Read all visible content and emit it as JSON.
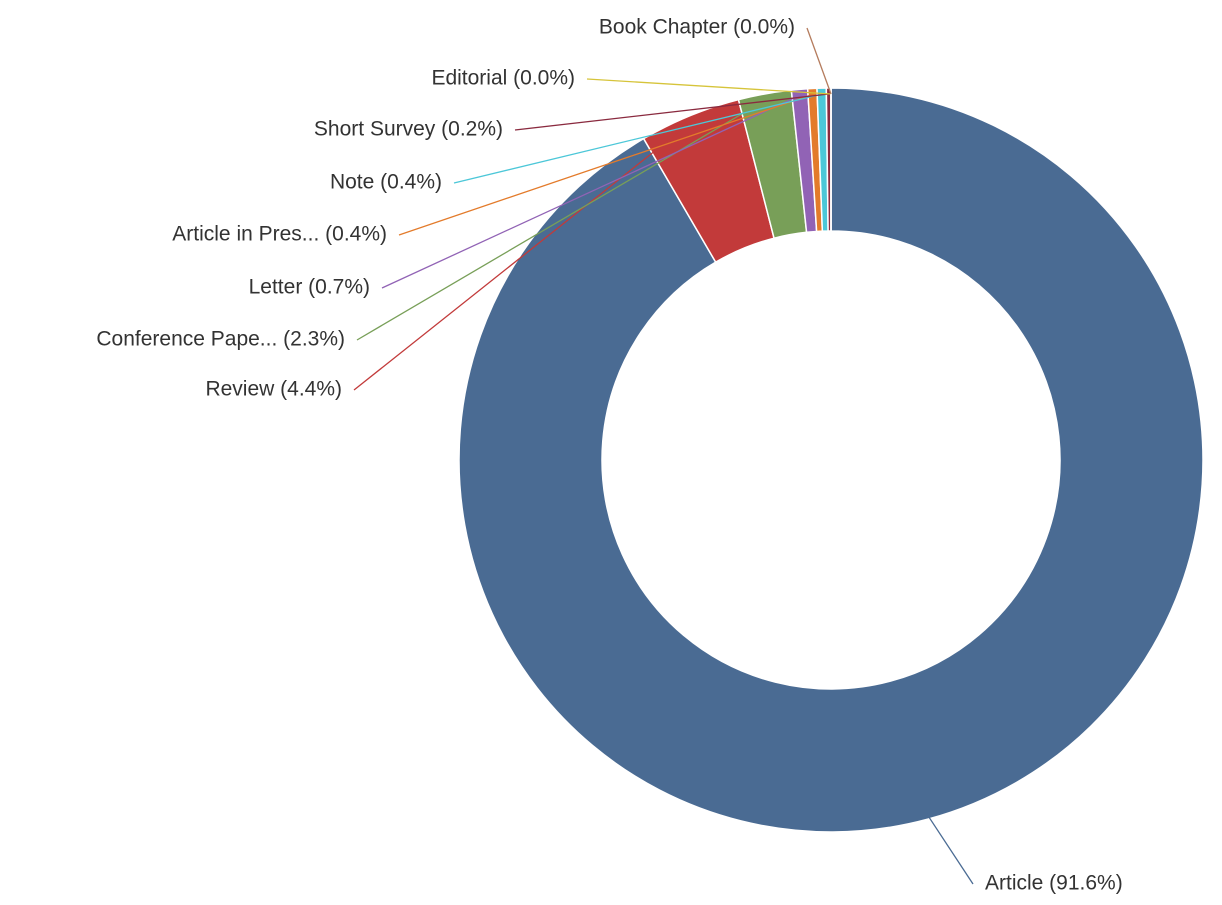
{
  "chart_data": {
    "type": "donut",
    "categories": [
      "Article (91.6%)",
      "Review (4.4%)",
      "Conference Pape... (2.3%)",
      "Letter (0.7%)",
      "Article in Pres... (0.4%)",
      "Note (0.4%)",
      "Short Survey (0.2%)",
      "Editorial (0.0%)",
      "Book Chapter (0.0%)"
    ],
    "values": [
      91.6,
      4.4,
      2.3,
      0.7,
      0.4,
      0.4,
      0.2,
      0.0,
      0.0
    ],
    "colors": [
      "#4a6b93",
      "#c23a3a",
      "#789f58",
      "#9163b5",
      "#e37b2b",
      "#4cc7d8",
      "#8a2a3f",
      "#d6c43a",
      "#b47b5c"
    ]
  }
}
